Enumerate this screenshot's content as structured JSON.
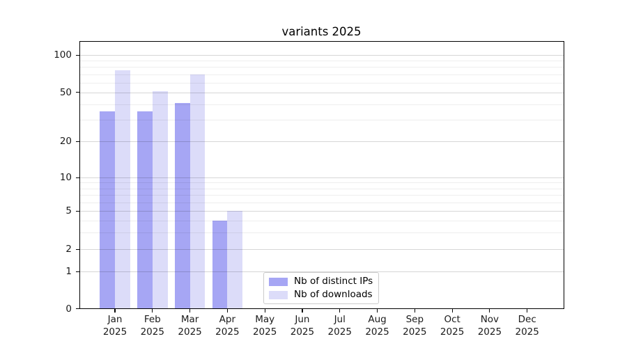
{
  "chart_data": {
    "type": "bar",
    "title": "variants 2025",
    "categories": [
      "Jan",
      "Feb",
      "Mar",
      "Apr",
      "May",
      "Jun",
      "Jul",
      "Aug",
      "Sep",
      "Oct",
      "Nov",
      "Dec"
    ],
    "year_suffix": "2025",
    "series": [
      {
        "name": "Nb of distinct IPs",
        "color": "#a6a6f4",
        "values": [
          35,
          35,
          41,
          4,
          null,
          null,
          null,
          null,
          null,
          null,
          null,
          null
        ]
      },
      {
        "name": "Nb of downloads",
        "color": "#dcdcf9",
        "values": [
          75,
          51,
          70,
          5,
          null,
          null,
          null,
          null,
          null,
          null,
          null,
          null
        ]
      }
    ],
    "yscale": "symlog",
    "yticks": [
      0,
      1,
      2,
      5,
      10,
      20,
      50,
      100
    ],
    "yticks_minor": [
      3,
      4,
      6,
      7,
      8,
      9,
      30,
      40,
      60,
      70,
      80,
      90
    ],
    "ylim": [
      0,
      140
    ],
    "grid": true,
    "legend_position": "lower center",
    "background_color": "#ffffff",
    "spine_color": "#000000"
  }
}
